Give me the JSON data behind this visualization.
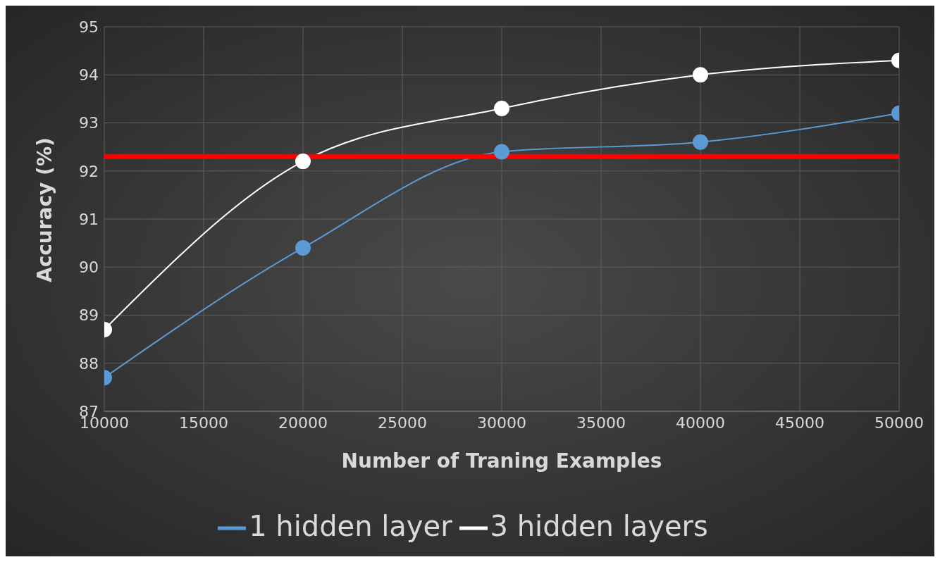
{
  "chart_data": {
    "type": "line",
    "xlabel": "Number of Traning Examples",
    "ylabel": "Accuracy (%)",
    "x": [
      10000,
      20000,
      30000,
      40000,
      50000
    ],
    "series": [
      {
        "name": "1 hidden layer",
        "color": "#5b9bd5",
        "values": [
          87.7,
          90.4,
          92.4,
          92.6,
          93.2
        ]
      },
      {
        "name": "3 hidden layers",
        "color": "#ffffff",
        "values": [
          88.7,
          92.2,
          93.3,
          94.0,
          94.3
        ]
      }
    ],
    "xlim": [
      10000,
      50000
    ],
    "xticks": [
      10000,
      15000,
      20000,
      25000,
      30000,
      35000,
      40000,
      45000,
      50000
    ],
    "ylim": [
      87,
      95
    ],
    "yticks": [
      87,
      88,
      89,
      90,
      91,
      92,
      93,
      94,
      95
    ],
    "ref_lines": [
      {
        "axis": "y",
        "value": 92.3,
        "color": "#ff0000"
      }
    ],
    "grid": true,
    "legend": "bottom",
    "marker": "circle",
    "line_style": "solid"
  }
}
